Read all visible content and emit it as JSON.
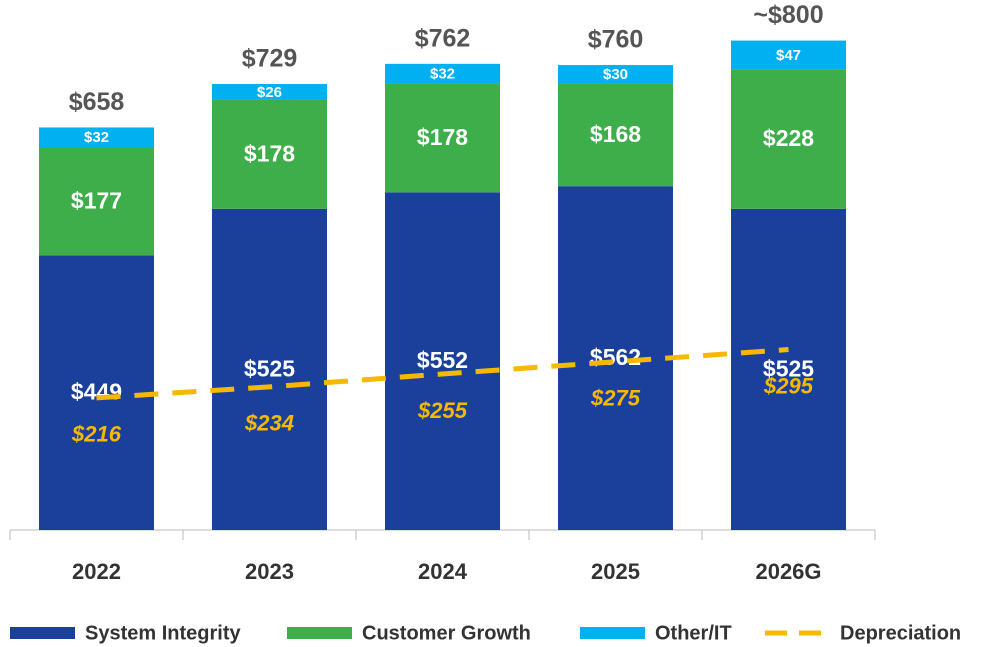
{
  "chart_data": {
    "type": "bar",
    "stacked": true,
    "categories": [
      "2022",
      "2023",
      "2024",
      "2025",
      "2026G"
    ],
    "ylim": [
      0,
      850
    ],
    "series": [
      {
        "name": "System Integrity",
        "color": "#1b409b",
        "values": [
          449,
          525,
          552,
          562,
          525
        ],
        "value_labels": [
          "$449",
          "$525",
          "$552",
          "$562",
          "$525"
        ]
      },
      {
        "name": "Customer Growth",
        "color": "#3dae4a",
        "values": [
          177,
          178,
          178,
          168,
          228
        ],
        "value_labels": [
          "$177",
          "$178",
          "$178",
          "$168",
          "$228"
        ]
      },
      {
        "name": "Other/IT",
        "color": "#00b0f0",
        "values": [
          32,
          26,
          32,
          30,
          47
        ],
        "value_labels": [
          "$32",
          "$26",
          "$32",
          "$30",
          "$47"
        ]
      },
      {
        "name": "Depreciation",
        "type": "line",
        "dashed": true,
        "color": "#f7b900",
        "values": [
          216,
          234,
          255,
          275,
          295
        ],
        "value_labels": [
          "$216",
          "$234",
          "$255",
          "$275",
          "$295"
        ]
      }
    ],
    "totals": [
      658,
      729,
      762,
      760,
      800
    ],
    "total_labels": [
      "$658",
      "$729",
      "$762",
      "$760",
      "~$800"
    ]
  }
}
